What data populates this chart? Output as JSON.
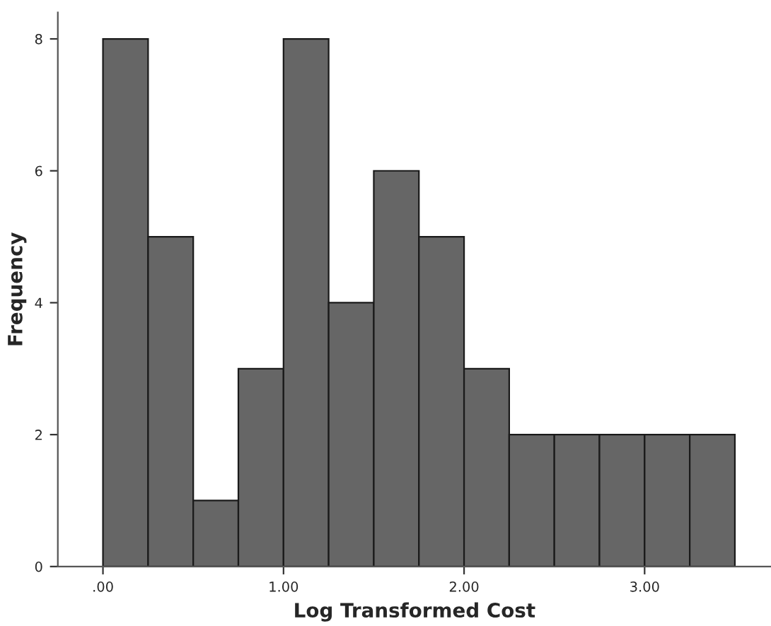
{
  "chart_data": {
    "type": "histogram",
    "xlabel": "Log Transformed Cost",
    "ylabel": "Frequency",
    "bins": [
      0,
      0.25,
      0.5,
      0.75,
      1.0,
      1.25,
      1.5,
      1.75,
      2.0,
      2.25,
      2.5,
      2.75,
      3.0,
      3.25,
      3.5
    ],
    "values": [
      8,
      5,
      1,
      3,
      8,
      4,
      6,
      5,
      3,
      2,
      2,
      2,
      2,
      2
    ],
    "color": "#666666",
    "xlim": [
      -0.25,
      3.7
    ],
    "ylim": [
      0,
      8.4
    ],
    "xticks": [
      {
        "value": 0,
        "label": ".00"
      },
      {
        "value": 1,
        "label": "1.00"
      },
      {
        "value": 2,
        "label": "2.00"
      },
      {
        "value": 3,
        "label": "3.00"
      }
    ],
    "yticks": [
      0,
      2,
      4,
      6,
      8
    ],
    "grid": false
  }
}
